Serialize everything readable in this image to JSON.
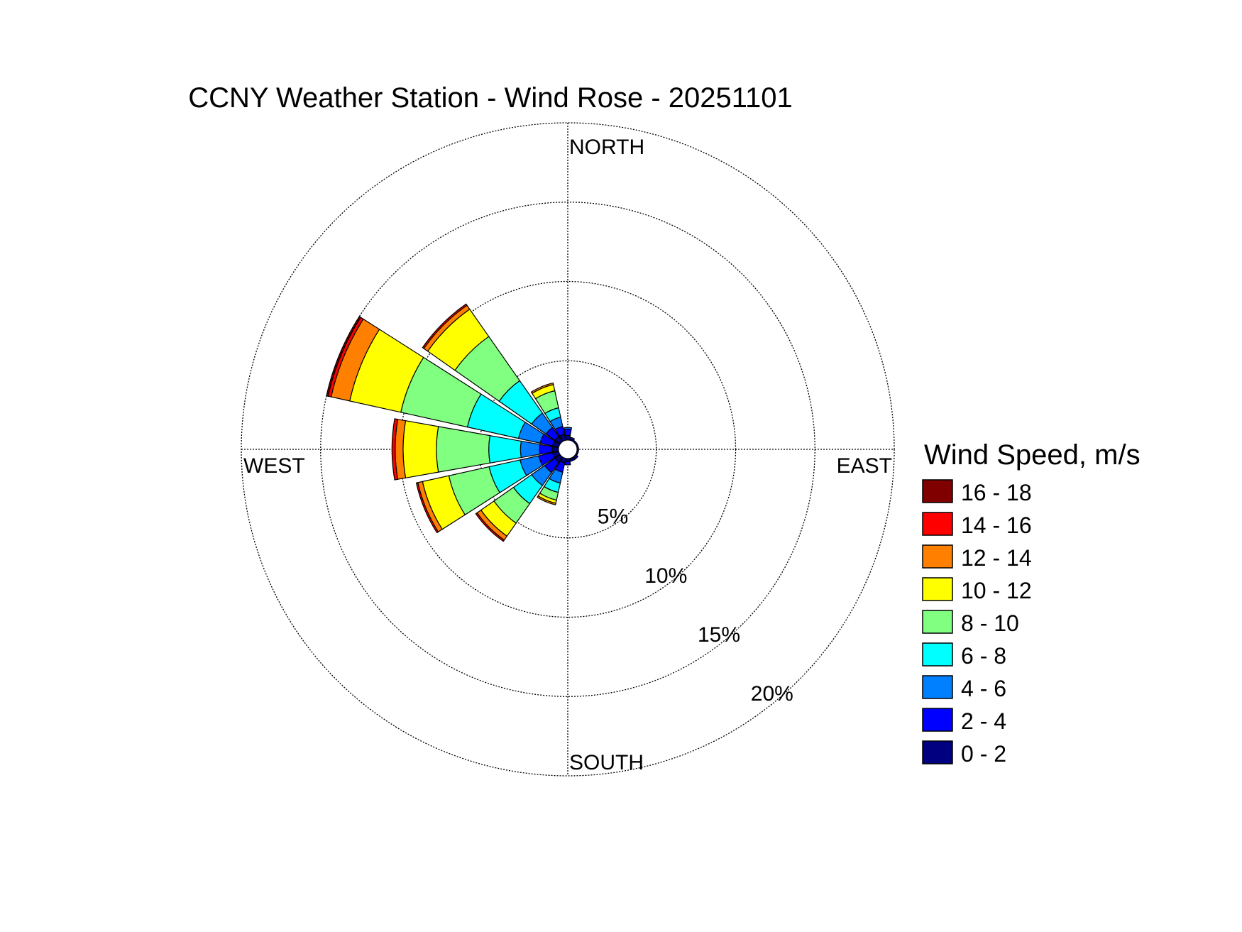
{
  "chart_data": {
    "type": "wind-rose",
    "title": "CCNY Weather Station - Wind Rose - 20251101",
    "direction_labels": {
      "north": "NORTH",
      "east": "EAST",
      "south": "SOUTH",
      "west": "WEST"
    },
    "radial_ticks": [
      5,
      10,
      15,
      20
    ],
    "radial_tick_labels": [
      "5%",
      "10%",
      "15%",
      "20%"
    ],
    "radial_max": 20,
    "grid": "dotted",
    "legend": {
      "title": "Wind Speed, m/s",
      "placement": "right",
      "items": [
        {
          "label": "16 - 18",
          "color": "#800000"
        },
        {
          "label": "14 - 16",
          "color": "#ff0000"
        },
        {
          "label": "12 - 14",
          "color": "#ff8000"
        },
        {
          "label": "10 - 12",
          "color": "#ffff00"
        },
        {
          "label": "8 - 10",
          "color": "#80ff80"
        },
        {
          "label": "6 - 8",
          "color": "#00ffff"
        },
        {
          "label": "4 - 6",
          "color": "#0080ff"
        },
        {
          "label": "2 - 4",
          "color": "#0000ff"
        },
        {
          "label": "0 - 2",
          "color": "#000080"
        }
      ]
    },
    "bins": [
      "0 - 2",
      "2 - 4",
      "4 - 6",
      "6 - 8",
      "8 - 10",
      "10 - 12",
      "12 - 14",
      "14 - 16",
      "16 - 18"
    ],
    "bin_colors": [
      "#000080",
      "#0000ff",
      "#0080ff",
      "#00ffff",
      "#80ff80",
      "#ffff00",
      "#ff8000",
      "#ff0000",
      "#800000"
    ],
    "sectors": [
      {
        "direction_deg": 0,
        "values": [
          0.3,
          0.4,
          0.1,
          0.0,
          0.0,
          0.0,
          0.0,
          0.0,
          0.0
        ]
      },
      {
        "direction_deg": 22.5,
        "values": [
          0.1,
          0.1,
          0.0,
          0.0,
          0.0,
          0.0,
          0.0,
          0.0,
          0.0
        ]
      },
      {
        "direction_deg": 45,
        "values": [
          0.1,
          0.0,
          0.0,
          0.0,
          0.0,
          0.0,
          0.0,
          0.0,
          0.0
        ]
      },
      {
        "direction_deg": 67.5,
        "values": [
          0.1,
          0.0,
          0.0,
          0.0,
          0.0,
          0.0,
          0.0,
          0.0,
          0.0
        ]
      },
      {
        "direction_deg": 90,
        "values": [
          0.1,
          0.0,
          0.0,
          0.0,
          0.0,
          0.0,
          0.0,
          0.0,
          0.0
        ]
      },
      {
        "direction_deg": 112.5,
        "values": [
          0.1,
          0.0,
          0.0,
          0.0,
          0.0,
          0.0,
          0.0,
          0.0,
          0.0
        ]
      },
      {
        "direction_deg": 135,
        "values": [
          0.1,
          0.1,
          0.0,
          0.0,
          0.0,
          0.0,
          0.0,
          0.0,
          0.0
        ]
      },
      {
        "direction_deg": 157.5,
        "values": [
          0.1,
          0.1,
          0.0,
          0.0,
          0.0,
          0.0,
          0.0,
          0.0,
          0.0
        ]
      },
      {
        "direction_deg": 180,
        "values": [
          0.2,
          0.2,
          0.0,
          0.0,
          0.0,
          0.0,
          0.0,
          0.0,
          0.0
        ]
      },
      {
        "direction_deg": 202.5,
        "values": [
          0.3,
          0.6,
          0.7,
          0.6,
          0.5,
          0.2,
          0.1,
          0.0,
          0.0
        ]
      },
      {
        "direction_deg": 225,
        "values": [
          0.4,
          0.8,
          1.0,
          1.4,
          1.5,
          1.0,
          0.3,
          0.1,
          0.0
        ]
      },
      {
        "direction_deg": 247.5,
        "values": [
          0.4,
          0.9,
          1.2,
          2.0,
          2.6,
          1.7,
          0.3,
          0.1,
          0.0
        ]
      },
      {
        "direction_deg": 270,
        "values": [
          0.4,
          0.8,
          1.2,
          2.0,
          3.3,
          2.1,
          0.5,
          0.2,
          0.0
        ]
      },
      {
        "direction_deg": 292.5,
        "values": [
          0.4,
          0.8,
          1.4,
          3.3,
          4.3,
          3.3,
          1.2,
          0.2,
          0.1
        ]
      },
      {
        "direction_deg": 315,
        "values": [
          0.4,
          0.7,
          1.1,
          2.5,
          3.4,
          2.1,
          0.3,
          0.1,
          0.0
        ]
      },
      {
        "direction_deg": 337.5,
        "values": [
          0.4,
          0.5,
          0.6,
          0.6,
          1.1,
          0.4,
          0.1,
          0.0,
          0.0
        ]
      }
    ]
  }
}
